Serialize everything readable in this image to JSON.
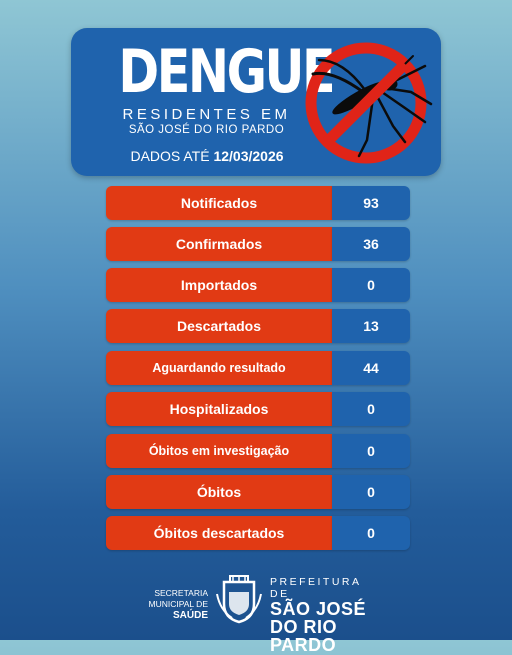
{
  "header": {
    "title": "DENGUE",
    "subtitle_line1": "RESIDENTES EM",
    "subtitle_line2": "SÃO JOSÉ DO RIO PARDO",
    "date_label": "DADOS ATÉ",
    "date_value": "12/03/2026",
    "icon": "no-mosquito-icon"
  },
  "stats": [
    {
      "label": "Notificados",
      "value": "93"
    },
    {
      "label": "Confirmados",
      "value": "36"
    },
    {
      "label": "Importados",
      "value": "0"
    },
    {
      "label": "Descartados",
      "value": "13"
    },
    {
      "label": "Aguardando resultado",
      "value": "44"
    },
    {
      "label": "Hospitalizados",
      "value": "0"
    },
    {
      "label": "Óbitos em investigação",
      "value": "0"
    },
    {
      "label": "Óbitos",
      "value": "0"
    },
    {
      "label": "Óbitos descartados",
      "value": "0"
    }
  ],
  "footer": {
    "secretaria_line1": "SECRETARIA",
    "secretaria_line2": "MUNICIPAL DE",
    "secretaria_line3": "SAÚDE",
    "prefeitura_line1": "PREFEITURA DE",
    "prefeitura_line2": "SÃO JOSÉ",
    "prefeitura_line3": "DO RIO PARDO",
    "crest_icon": "city-crest-icon"
  },
  "colors": {
    "header_blue": "#1f63ad",
    "label_red": "#e13a14",
    "value_blue": "#1f63ad"
  }
}
